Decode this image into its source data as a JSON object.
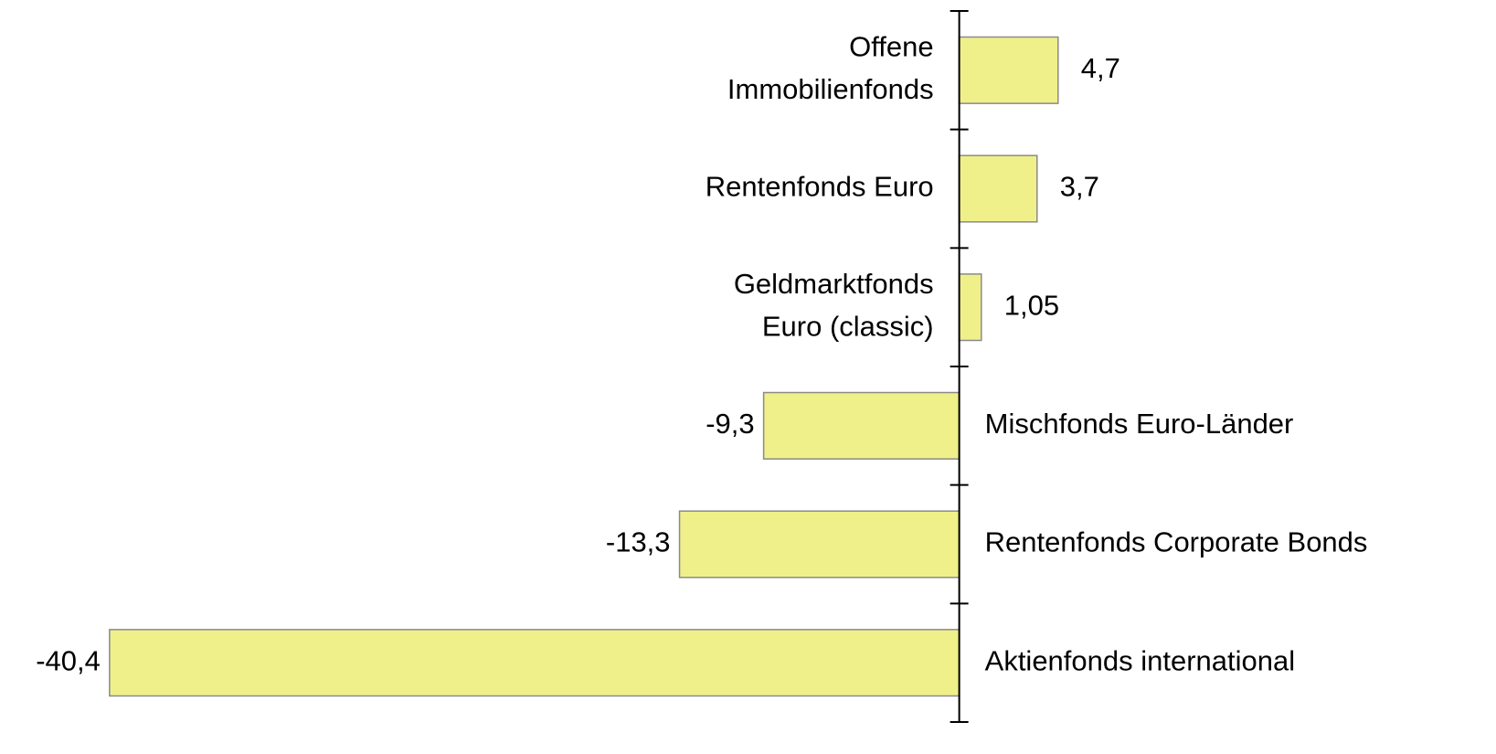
{
  "chart_data": {
    "type": "barh",
    "categories": [
      "Offene\nImmobilienfonds",
      "Rentenfonds Euro",
      "Geldmarktfonds\nEuro (classic)",
      "Mischfonds Euro-Länder",
      "Rentenfonds Corporate Bonds",
      "Aktienfonds international"
    ],
    "values": [
      4.7,
      3.7,
      1.05,
      -9.3,
      -13.3,
      -40.4
    ],
    "value_labels": [
      "4,7",
      "3,7",
      "1,05",
      "-9,3",
      "-13,3",
      "-40,4"
    ],
    "color": "#f0f08a",
    "xlim": [
      -45,
      25
    ]
  }
}
